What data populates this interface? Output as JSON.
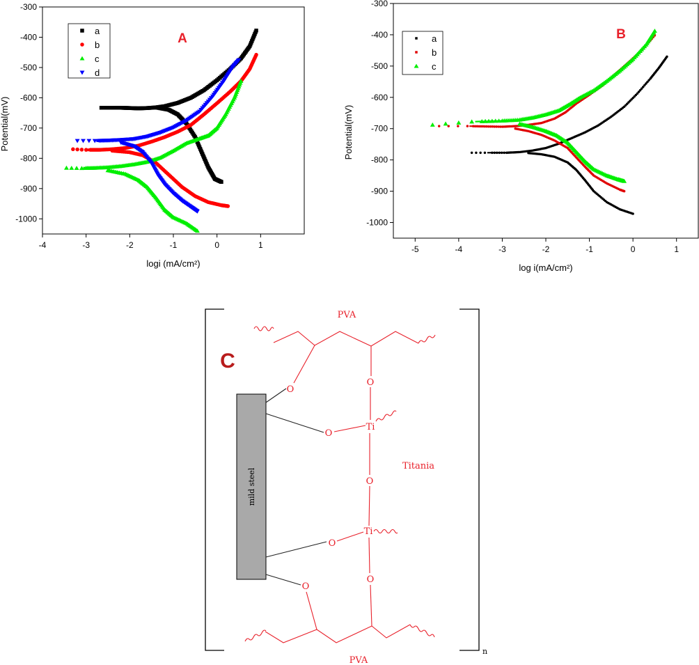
{
  "chart_data": [
    {
      "panel_label": "A",
      "type": "scatter",
      "xlabel": "logi (mA/cm²)",
      "ylabel": "Potential(mV)",
      "xlim": [
        -4,
        2
      ],
      "ylim": [
        -1050,
        -300
      ],
      "xticks": [
        -4,
        -3,
        -2,
        -1,
        0,
        1
      ],
      "yticks": [
        -300,
        -400,
        -500,
        -600,
        -700,
        -800,
        -900,
        -1000
      ],
      "legend_position": "top-left",
      "series": [
        {
          "name": "a",
          "color": "#000000",
          "marker": "square",
          "anodic": [
            [
              -2.65,
              -633
            ],
            [
              -2.4,
              -633
            ],
            [
              -2.2,
              -633
            ],
            [
              -2.0,
              -634
            ],
            [
              -1.8,
              -635
            ],
            [
              -1.6,
              -634
            ],
            [
              -1.4,
              -632
            ],
            [
              -1.2,
              -628
            ],
            [
              -0.9,
              -617
            ],
            [
              -0.6,
              -600
            ],
            [
              -0.3,
              -575
            ],
            [
              0.0,
              -542
            ],
            [
              0.3,
              -505
            ],
            [
              0.55,
              -470
            ],
            [
              0.75,
              -430
            ],
            [
              0.9,
              -378
            ]
          ],
          "cathodic": [
            [
              -1.4,
              -632
            ],
            [
              -1.1,
              -640
            ],
            [
              -0.9,
              -655
            ],
            [
              -0.7,
              -685
            ],
            [
              -0.5,
              -730
            ],
            [
              -0.35,
              -780
            ],
            [
              -0.2,
              -830
            ],
            [
              -0.05,
              -868
            ],
            [
              0.1,
              -878
            ]
          ]
        },
        {
          "name": "b",
          "color": "#ff0000",
          "marker": "circle",
          "anodic": [
            [
              -3.3,
              -770
            ],
            [
              -3.0,
              -772
            ],
            [
              -2.7,
              -772
            ],
            [
              -2.4,
              -770
            ],
            [
              -2.1,
              -766
            ],
            [
              -1.8,
              -758
            ],
            [
              -1.5,
              -745
            ],
            [
              -1.2,
              -730
            ],
            [
              -0.9,
              -712
            ],
            [
              -0.6,
              -690
            ],
            [
              -0.3,
              -655
            ],
            [
              0.0,
              -618
            ],
            [
              0.3,
              -580
            ],
            [
              0.55,
              -545
            ],
            [
              0.75,
              -505
            ],
            [
              0.9,
              -458
            ]
          ],
          "cathodic": [
            [
              -2.4,
              -775
            ],
            [
              -2.0,
              -780
            ],
            [
              -1.7,
              -790
            ],
            [
              -1.4,
              -815
            ],
            [
              -1.1,
              -855
            ],
            [
              -0.8,
              -895
            ],
            [
              -0.5,
              -925
            ],
            [
              -0.2,
              -945
            ],
            [
              0.1,
              -955
            ],
            [
              0.25,
              -958
            ]
          ]
        },
        {
          "name": "c",
          "color": "#00ee00",
          "marker": "triangle-up",
          "anodic": [
            [
              -3.45,
              -832
            ],
            [
              -3.1,
              -833
            ],
            [
              -2.8,
              -832
            ],
            [
              -2.5,
              -830
            ],
            [
              -2.2,
              -826
            ],
            [
              -1.9,
              -820
            ],
            [
              -1.6,
              -812
            ],
            [
              -1.3,
              -798
            ],
            [
              -1.0,
              -775
            ],
            [
              -0.7,
              -750
            ],
            [
              -0.4,
              -735
            ],
            [
              -0.2,
              -725
            ],
            [
              0.0,
              -700
            ],
            [
              0.2,
              -655
            ],
            [
              0.4,
              -600
            ],
            [
              0.55,
              -545
            ]
          ],
          "cathodic": [
            [
              -2.5,
              -840
            ],
            [
              -2.1,
              -852
            ],
            [
              -1.8,
              -872
            ],
            [
              -1.6,
              -895
            ],
            [
              -1.4,
              -930
            ],
            [
              -1.2,
              -970
            ],
            [
              -1.0,
              -995
            ],
            [
              -0.7,
              -1015
            ],
            [
              -0.45,
              -1040
            ]
          ]
        },
        {
          "name": "d",
          "color": "#0000ff",
          "marker": "triangle-down",
          "anodic": [
            [
              -3.2,
              -742
            ],
            [
              -2.8,
              -742
            ],
            [
              -2.5,
              -741
            ],
            [
              -2.2,
              -739
            ],
            [
              -1.9,
              -736
            ],
            [
              -1.6,
              -728
            ],
            [
              -1.3,
              -715
            ],
            [
              -1.0,
              -698
            ],
            [
              -0.7,
              -675
            ],
            [
              -0.4,
              -645
            ],
            [
              -0.1,
              -595
            ],
            [
              0.15,
              -545
            ],
            [
              0.35,
              -500
            ],
            [
              0.5,
              -475
            ]
          ],
          "cathodic": [
            [
              -2.2,
              -748
            ],
            [
              -1.9,
              -760
            ],
            [
              -1.7,
              -780
            ],
            [
              -1.5,
              -815
            ],
            [
              -1.35,
              -855
            ],
            [
              -1.2,
              -885
            ],
            [
              -1.0,
              -915
            ],
            [
              -0.8,
              -940
            ],
            [
              -0.6,
              -960
            ],
            [
              -0.45,
              -975
            ]
          ]
        }
      ]
    },
    {
      "panel_label": "B",
      "type": "scatter",
      "xlabel": "log i(mA/cm²)",
      "ylabel": "Potential(mV)",
      "xlim": [
        -5.5,
        1.5
      ],
      "ylim": [
        -1050,
        -300
      ],
      "xticks": [
        -5,
        -4,
        -3,
        -2,
        -1,
        0,
        1
      ],
      "yticks": [
        -300,
        -400,
        -500,
        -600,
        -700,
        -800,
        -900,
        -1000
      ],
      "legend_position": "top-left",
      "series": [
        {
          "name": "a",
          "color": "#000000",
          "marker": "dot",
          "anodic": [
            [
              -3.7,
              -777
            ],
            [
              -3.4,
              -777
            ],
            [
              -2.9,
              -777
            ],
            [
              -2.6,
              -775
            ],
            [
              -2.3,
              -770
            ],
            [
              -2.0,
              -762
            ],
            [
              -1.7,
              -748
            ],
            [
              -1.4,
              -730
            ],
            [
              -1.1,
              -712
            ],
            [
              -0.8,
              -690
            ],
            [
              -0.5,
              -662
            ],
            [
              -0.2,
              -630
            ],
            [
              0.1,
              -588
            ],
            [
              0.4,
              -540
            ],
            [
              0.6,
              -505
            ],
            [
              0.78,
              -470
            ]
          ],
          "cathodic": [
            [
              -2.4,
              -778
            ],
            [
              -2.1,
              -782
            ],
            [
              -1.8,
              -790
            ],
            [
              -1.5,
              -808
            ],
            [
              -1.3,
              -832
            ],
            [
              -1.1,
              -865
            ],
            [
              -0.9,
              -900
            ],
            [
              -0.6,
              -935
            ],
            [
              -0.3,
              -958
            ],
            [
              0.0,
              -972
            ]
          ]
        },
        {
          "name": "b",
          "color": "#e00000",
          "marker": "dot",
          "anodic": [
            [
              -4.45,
              -692
            ],
            [
              -3.8,
              -692
            ],
            [
              -3.4,
              -693
            ],
            [
              -3.0,
              -694
            ],
            [
              -2.7,
              -692
            ],
            [
              -2.4,
              -688
            ],
            [
              -2.1,
              -682
            ],
            [
              -1.8,
              -668
            ],
            [
              -1.55,
              -648
            ],
            [
              -1.3,
              -620
            ],
            [
              -1.0,
              -592
            ],
            [
              -0.7,
              -562
            ],
            [
              -0.4,
              -525
            ],
            [
              -0.1,
              -488
            ],
            [
              0.2,
              -450
            ],
            [
              0.5,
              -402
            ]
          ],
          "cathodic": [
            [
              -2.7,
              -700
            ],
            [
              -2.4,
              -708
            ],
            [
              -2.1,
              -720
            ],
            [
              -1.8,
              -738
            ],
            [
              -1.5,
              -762
            ],
            [
              -1.3,
              -792
            ],
            [
              -1.1,
              -822
            ],
            [
              -0.9,
              -850
            ],
            [
              -0.6,
              -875
            ],
            [
              -0.3,
              -895
            ],
            [
              -0.2,
              -900
            ]
          ]
        },
        {
          "name": "c",
          "color": "#00ee00",
          "marker": "triangle-up",
          "anodic": [
            [
              -4.6,
              -688
            ],
            [
              -3.7,
              -678
            ],
            [
              -3.0,
              -675
            ],
            [
              -2.6,
              -672
            ],
            [
              -2.3,
              -665
            ],
            [
              -2.0,
              -655
            ],
            [
              -1.7,
              -642
            ],
            [
              -1.45,
              -622
            ],
            [
              -1.2,
              -600
            ],
            [
              -0.9,
              -578
            ],
            [
              -0.6,
              -548
            ],
            [
              -0.3,
              -515
            ],
            [
              0.0,
              -478
            ],
            [
              0.3,
              -432
            ],
            [
              0.5,
              -388
            ]
          ],
          "cathodic": [
            [
              -2.6,
              -685
            ],
            [
              -2.3,
              -695
            ],
            [
              -2.0,
              -708
            ],
            [
              -1.75,
              -722
            ],
            [
              -1.5,
              -745
            ],
            [
              -1.3,
              -775
            ],
            [
              -1.1,
              -805
            ],
            [
              -0.9,
              -830
            ],
            [
              -0.6,
              -850
            ],
            [
              -0.35,
              -862
            ],
            [
              -0.2,
              -868
            ]
          ]
        }
      ]
    }
  ],
  "diagram": {
    "panel_label": "C",
    "top_label": "PVA",
    "bottom_label": "PVA",
    "side_label": "Titania",
    "substrate_label": "mild steel",
    "repeat_subscript": "n",
    "oxygen": "O",
    "titanium": "Ti"
  }
}
